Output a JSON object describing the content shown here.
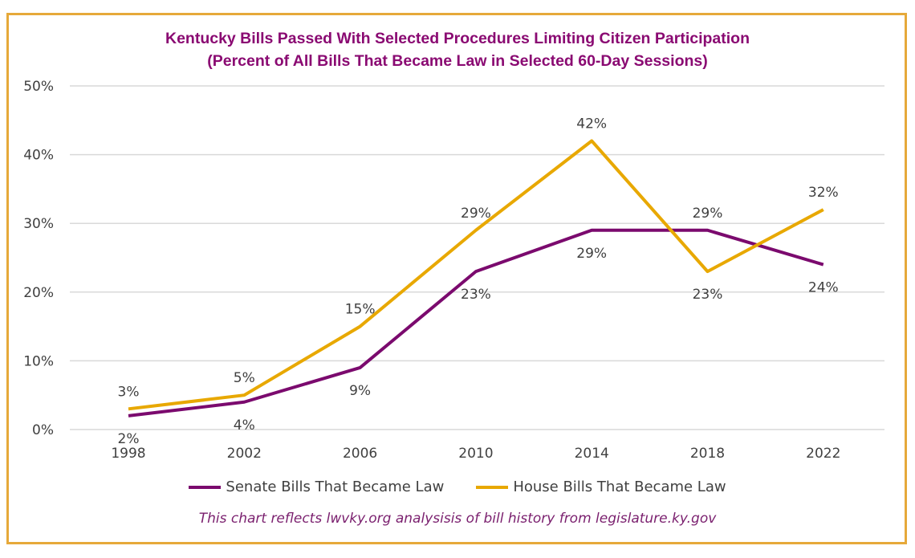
{
  "chart_data": {
    "type": "line",
    "title": "Kentucky Bills Passed With Selected Procedures Limiting Citizen Participation",
    "subtitle": "(Percent of All Bills That Became Law in Selected 60-Day Sessions)",
    "categories": [
      "1998",
      "2002",
      "2006",
      "2010",
      "2014",
      "2018",
      "2022"
    ],
    "ylim": [
      0,
      50
    ],
    "yticks": [
      "0%",
      "10%",
      "20%",
      "30%",
      "40%",
      "50%"
    ],
    "grid": true,
    "legend_position": "bottom",
    "series": [
      {
        "name": "Senate Bills That Became Law",
        "color": "#7B0A6E",
        "values": [
          2,
          4,
          9,
          23,
          29,
          29,
          24
        ],
        "labels": [
          "2%",
          "4%",
          "9%",
          "23%",
          "29%",
          "29%",
          "24%"
        ]
      },
      {
        "name": "House Bills That Became Law",
        "color": "#E8A800",
        "values": [
          3,
          5,
          15,
          29,
          42,
          23,
          32
        ],
        "labels": [
          "3%",
          "5%",
          "15%",
          "29%",
          "42%",
          "23%",
          "32%"
        ]
      }
    ],
    "note": "This chart reflects lwvky.org analysisis of bill history from legislature.ky.gov"
  }
}
